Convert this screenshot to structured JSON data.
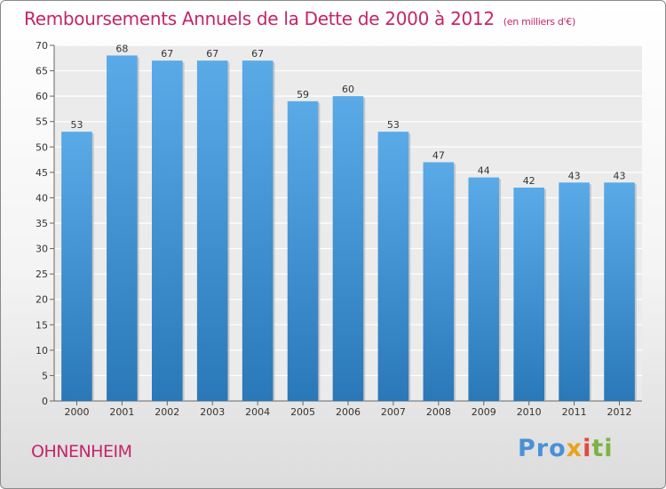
{
  "chart_data": {
    "type": "bar",
    "title": "Remboursements Annuels de la Dette de 2000 à 2012",
    "unit_note": "(en milliers d'€)",
    "categories": [
      "2000",
      "2001",
      "2002",
      "2003",
      "2004",
      "2005",
      "2006",
      "2007",
      "2008",
      "2009",
      "2010",
      "2011",
      "2012"
    ],
    "values": [
      53,
      68,
      67,
      67,
      67,
      59,
      60,
      53,
      47,
      44,
      42,
      43,
      43
    ],
    "ylim": [
      0,
      70
    ],
    "yticks": [
      0,
      5,
      10,
      15,
      20,
      25,
      30,
      35,
      40,
      45,
      50,
      55,
      60,
      65,
      70
    ],
    "grid": true,
    "xlabel": "",
    "ylabel": "",
    "bar_color_top": "#5aaae8",
    "bar_color_bottom": "#2a78b8"
  },
  "footer": {
    "commune": "OHNENHEIM",
    "logo": [
      "Pro",
      "x",
      "i",
      "ti"
    ]
  },
  "colors": {
    "title": "#c4256a",
    "logo_p": "#4a90d9",
    "logo_x": "#e8a31c",
    "logo_i": "#e04b3c",
    "logo_ti": "#7cb342"
  }
}
